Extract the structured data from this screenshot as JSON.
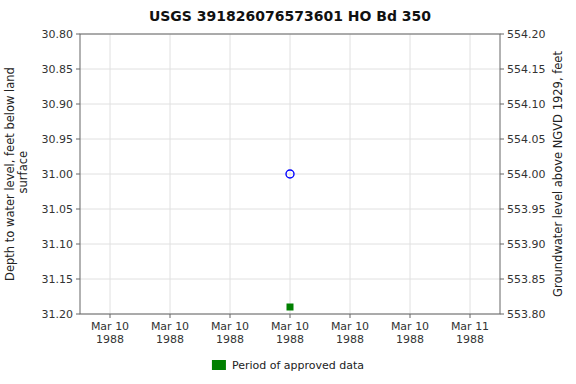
{
  "chart_data": {
    "type": "scatter",
    "title": "USGS 391826076573601 HO Bd 350",
    "ylabel": "Depth to water level, feet below land\n surface",
    "y2label": "Groundwater level above NGVD 1929, feet",
    "categories": [
      "Mar 10\n1988",
      "Mar 10\n1988",
      "Mar 10\n1988",
      "Mar 10\n1988",
      "Mar 10\n1988",
      "Mar 10\n1988",
      "Mar 11\n1988"
    ],
    "series": [
      {
        "color": "#0000ff",
        "marker": "open-circle",
        "values": [
          null,
          null,
          null,
          31.0,
          null,
          null,
          null
        ]
      },
      {
        "name": "Period of approved data",
        "color": "#008000",
        "marker": "square",
        "values": [
          null,
          null,
          null,
          31.19,
          null,
          null,
          null
        ]
      }
    ],
    "ylim": [
      31.2,
      30.8
    ],
    "yticks": [
      {
        "value": 30.8,
        "label": "30.80"
      },
      30.85,
      {
        "value": 30.9,
        "label": "30.90"
      },
      30.95,
      {
        "value": 31.0,
        "label": "31.00"
      },
      31.05,
      {
        "value": 31.1,
        "label": "31.10"
      },
      31.15,
      {
        "value": 31.2,
        "label": "31.20"
      }
    ],
    "y2lim": [
      553.8,
      554.2
    ],
    "y2ticks": [
      {
        "value": 554.2,
        "label": "554.20"
      },
      554.15,
      {
        "value": 554.1,
        "label": "554.10"
      },
      554.05,
      {
        "value": 554.0,
        "label": "554.00"
      },
      553.95,
      {
        "value": 553.9,
        "label": "553.90"
      },
      553.85,
      {
        "value": 553.8,
        "label": "553.80"
      }
    ],
    "grid": true,
    "legend": "bottom"
  }
}
